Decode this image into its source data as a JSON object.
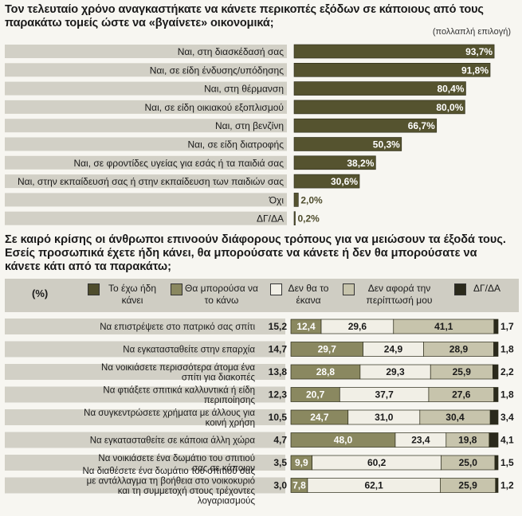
{
  "section1": {
    "title": "Τον τελευταίο χρόνο αναγκαστήκατε να κάνετε περικοπές εξόδων σε κάποιους από τους παρακάτω τομείς ώστε να «βγαίνετε» οικονομικά;",
    "note": "(πολλαπλή επιλογή)"
  },
  "section2": {
    "title": "Σε καιρό κρίσης οι άνθρωποι επινοούν διάφορους τρόπους για να μειώσουν τα έξοδά τους. Εσείς προσωπικά έχετε ήδη κάνει, θα μπορούσατε να κάνετε ή δεν θα μπορούσατε να κάνετε κάτι από τα παρακάτω;"
  },
  "legend": {
    "pct_label": "(%)",
    "items": [
      {
        "label": "Το έχω ήδη κάνει",
        "color": "#4e4c2c"
      },
      {
        "label": "Θα μπορούσα να το κάνω",
        "color": "#8a8860"
      },
      {
        "label": "Δεν θα το έκανα",
        "color": "#f1efe6"
      },
      {
        "label": "Δεν αφορά την περίπτωσή μου",
        "color": "#c7c4ac"
      },
      {
        "label": "ΔΓ/ΔΑ",
        "color": "#2b2a1c"
      }
    ]
  },
  "chart_data": [
    {
      "type": "bar",
      "orientation": "horizontal",
      "categories": [
        "Ναι, στη διασκέδασή σας",
        "Ναι, σε είδη ένδυσης/υπόδησης",
        "Ναι, στη θέρμανση",
        "Ναι, σε είδη οικιακού εξοπλισμού",
        "Ναι, στη βενζίνη",
        "Ναι, σε είδη διατροφής",
        "Ναι, σε φροντίδες υγείας για εσάς ή τα παιδιά σας",
        "Ναι, στην εκπαίδευσή σας ή στην εκπαίδευση των παιδιών σας",
        "Όχι",
        "ΔΓ/ΔΑ"
      ],
      "values": [
        93.7,
        91.8,
        80.4,
        80.0,
        66.7,
        50.3,
        38.2,
        30.6,
        2.0,
        0.2
      ],
      "labels": [
        "93,7",
        "91,8",
        "80,4",
        "80,0",
        "66,7",
        "50,3",
        "38,2",
        "30,6",
        "2,0",
        "0,2"
      ],
      "unit": "%",
      "color": "#55532f"
    },
    {
      "type": "bar",
      "stacked": true,
      "orientation": "horizontal",
      "categories": [
        "Να επιστρέψετε στο πατρικό σας σπίτι",
        "Να εγκατασταθείτε στην επαρχία",
        "Να νοικιάσετε περισσότερα άτομα ένα σπίτι για διακοπές",
        "Να φτιάξετε σπιτικά καλλυντικά ή είδη περιποίησης",
        "Να συγκεντρώσετε χρήματα με άλλους για κοινή χρήση",
        "Να εγκατασταθείτε σε κάποια άλλη χώρα",
        "Να νοικιάσετε ένα δωμάτιο του σπιτιού σας σε κάποιον",
        "Να διαθέσετε ένα δωμάτιο του σπιτιού σας με αντάλλαγμα τη βοήθεια στο νοικοκυριό και τη συμμετοχή στους τρέχοντες λογαριασμούς"
      ],
      "series": [
        {
          "name": "Το έχω ήδη κάνει",
          "values": [
            15.2,
            14.7,
            13.8,
            12.3,
            10.5,
            4.7,
            3.5,
            3.0
          ],
          "labels": [
            "15,2",
            "14,7",
            "13,8",
            "12,3",
            "10,5",
            "4,7",
            "3,5",
            "3,0"
          ]
        },
        {
          "name": "Θα μπορούσα να το κάνω",
          "values": [
            12.4,
            29.7,
            28.8,
            20.7,
            24.7,
            48.0,
            9.9,
            7.8
          ],
          "labels": [
            "12,4",
            "29,7",
            "28,8",
            "20,7",
            "24,7",
            "48,0",
            "9,9",
            "7,8"
          ]
        },
        {
          "name": "Δεν θα το έκανα",
          "values": [
            29.6,
            24.9,
            29.3,
            37.7,
            31.0,
            23.4,
            60.2,
            62.1
          ],
          "labels": [
            "29,6",
            "24,9",
            "29,3",
            "37,7",
            "31,0",
            "23,4",
            "60,2",
            "62,1"
          ]
        },
        {
          "name": "Δεν αφορά την περίπτωσή μου",
          "values": [
            41.1,
            28.9,
            25.9,
            27.6,
            30.4,
            19.8,
            25.0,
            25.9
          ],
          "labels": [
            "41,1",
            "28,9",
            "25,9",
            "27,6",
            "30,4",
            "19,8",
            "25,0",
            "25,9"
          ]
        },
        {
          "name": "ΔΓ/ΔΑ",
          "values": [
            1.7,
            1.8,
            2.2,
            1.8,
            3.4,
            4.1,
            1.5,
            1.2
          ],
          "labels": [
            "1,7",
            "1,8",
            "2,2",
            "1,8",
            "3,4",
            "4,1",
            "1,5",
            "1,2"
          ]
        }
      ],
      "unit": "%"
    }
  ]
}
